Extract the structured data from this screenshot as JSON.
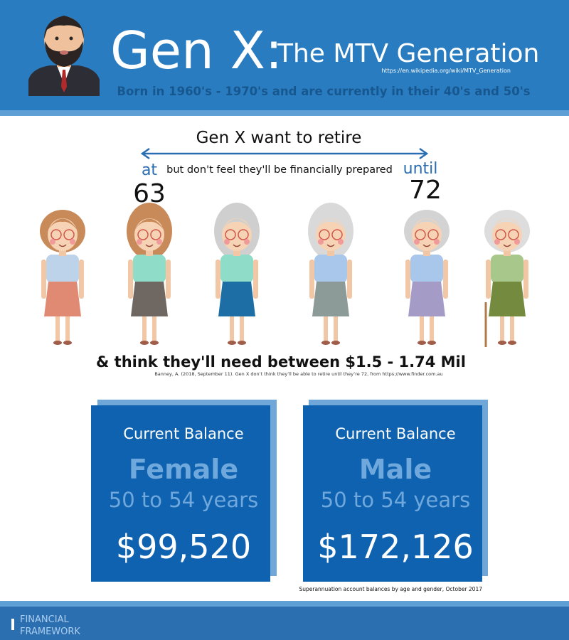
{
  "header": {
    "title": "Gen X:",
    "subtitle": "The MTV Generation",
    "source_url": "https://en.wikipedia.org/wiki/MTV_Generation",
    "tagline": "Born in 1960's - 1970's and are currently in their 40's and 50's"
  },
  "retirement": {
    "heading": "Gen X want to retire",
    "from_label": "at",
    "from_age": 63,
    "note": "but don't feel they'll be financially prepared",
    "to_label": "until",
    "to_age": 72,
    "savings_needed": "& think they'll need between $1.5 - 1.74 Mil",
    "citation": "Banney, A. (2018, September 11). Gen X don’t think they’ll be able to retire until they’re 72, from https://www.finder.com.au"
  },
  "cards": [
    {
      "heading": "Current Balance",
      "gender": "Female",
      "age_group": "50 to 54 years",
      "balance": "$99,520"
    },
    {
      "heading": "Current Balance",
      "gender": "Male",
      "age_group": "50 to 54 years",
      "balance": "$172,126"
    }
  ],
  "cards_source": "Superannuation account balances by age and gender, October 2017",
  "footer": {
    "brand_line1": "FINANCIAL",
    "brand_line2": "FRAMEWORK"
  }
}
